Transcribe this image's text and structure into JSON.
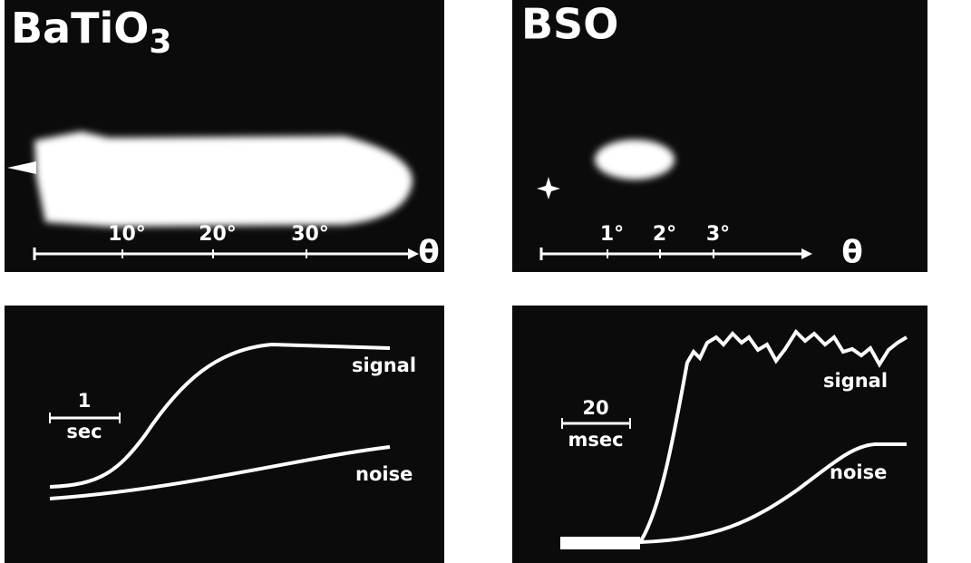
{
  "panels": [
    {
      "title": "BaTiO",
      "title_subscript": "3",
      "axis_ticks": [
        "10°",
        "20°",
        "30°"
      ],
      "axis_symbol": "θ"
    },
    {
      "title": "BSO",
      "axis_ticks": [
        "1°",
        "2°",
        "3°"
      ],
      "axis_symbol": "θ"
    },
    {
      "scale_value": "1",
      "scale_unit": "sec",
      "curves": [
        "signal",
        "noise"
      ]
    },
    {
      "scale_value": "20",
      "scale_unit": "msec",
      "curves": [
        "signal",
        "noise"
      ]
    }
  ]
}
